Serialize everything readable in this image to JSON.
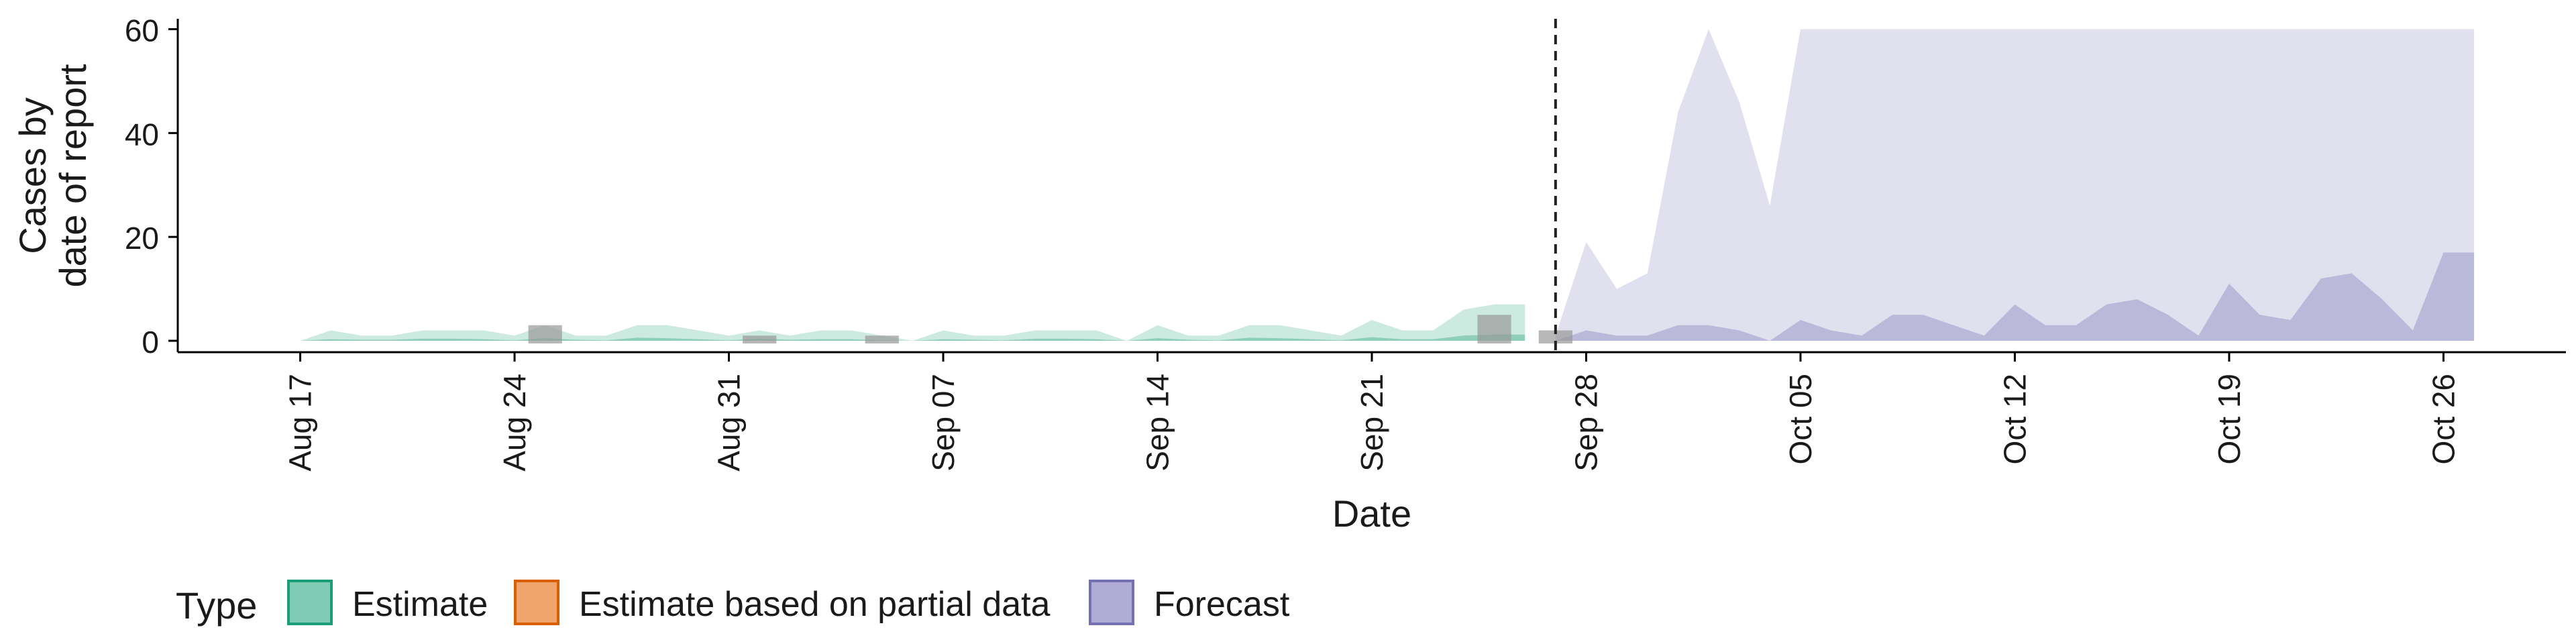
{
  "chart_data": {
    "type": "area",
    "xlabel": "Date",
    "ylabel_lines": [
      "Cases by",
      "date of report"
    ],
    "ylim": [
      0,
      62
    ],
    "y_ticks": [
      0,
      20,
      40,
      60
    ],
    "x_range": [
      "2020-08-13",
      "2020-10-30"
    ],
    "x_ticks": [
      {
        "date": "2020-08-17",
        "label": "Aug 17"
      },
      {
        "date": "2020-08-24",
        "label": "Aug 24"
      },
      {
        "date": "2020-08-31",
        "label": "Aug 31"
      },
      {
        "date": "2020-09-07",
        "label": "Sep 07"
      },
      {
        "date": "2020-09-14",
        "label": "Sep 14"
      },
      {
        "date": "2020-09-21",
        "label": "Sep 21"
      },
      {
        "date": "2020-09-28",
        "label": "Sep 28"
      },
      {
        "date": "2020-10-05",
        "label": "Oct 05"
      },
      {
        "date": "2020-10-12",
        "label": "Oct 12"
      },
      {
        "date": "2020-10-19",
        "label": "Oct 19"
      },
      {
        "date": "2020-10-26",
        "label": "Oct 26"
      }
    ],
    "cutoff_date": "2020-09-27",
    "grid": false,
    "legend_placement": "bottom-left",
    "legend": {
      "title": "Type",
      "entries": [
        {
          "label": "Estimate",
          "fill": "#7fcbb4",
          "stroke": "#1b9e77"
        },
        {
          "label": "Estimate based on partial data",
          "fill": "#eea46a",
          "stroke": "#d95f02"
        },
        {
          "label": "Forecast",
          "fill": "#b1acd6",
          "stroke": "#7570b3"
        }
      ]
    },
    "colors": {
      "estimate_fill": "#1b9e77",
      "forecast_fill": "#7570b3",
      "observed_bar": "#999999"
    },
    "bands": [
      {
        "series": "Estimate",
        "x_start": "2020-08-17",
        "upper": [
          0,
          2,
          1,
          1,
          2,
          2,
          2,
          1,
          3,
          1,
          1,
          3,
          3,
          2,
          1,
          2,
          1,
          2,
          2,
          1,
          0,
          2,
          1,
          1,
          2,
          2,
          2,
          0,
          3,
          1,
          1,
          3,
          3,
          2,
          1,
          4,
          2,
          2,
          6,
          7,
          7
        ],
        "lower": [
          0,
          0.3,
          0.2,
          0.2,
          0.4,
          0.4,
          0.3,
          0.1,
          0.5,
          0.2,
          0.1,
          0.6,
          0.5,
          0.3,
          0.1,
          0.4,
          0.2,
          0.3,
          0.3,
          0.1,
          0,
          0.3,
          0.2,
          0.1,
          0.4,
          0.4,
          0.3,
          0,
          0.5,
          0.2,
          0.1,
          0.6,
          0.5,
          0.3,
          0.1,
          0.7,
          0.3,
          0.3,
          1,
          1.2,
          1.2
        ]
      },
      {
        "series": "Forecast",
        "x_start": "2020-09-27",
        "upper": [
          1,
          19,
          10,
          13,
          44,
          60,
          46,
          26,
          60,
          60,
          60,
          60,
          60,
          60,
          60,
          60,
          60,
          60,
          60,
          60,
          60,
          60,
          60,
          60,
          60,
          60,
          60,
          60,
          60,
          60,
          60
        ],
        "lower": [
          0,
          2,
          1,
          1,
          3,
          3,
          2,
          0,
          4,
          2,
          1,
          5,
          5,
          3,
          1,
          7,
          3,
          3,
          7,
          8,
          5,
          1,
          11,
          5,
          4,
          12,
          13,
          8,
          2,
          17,
          17
        ]
      }
    ],
    "observed_cases": [
      {
        "date": "2020-08-25",
        "value": 3
      },
      {
        "date": "2020-09-01",
        "value": 1
      },
      {
        "date": "2020-09-05",
        "value": 1
      },
      {
        "date": "2020-09-25",
        "value": 5
      },
      {
        "date": "2020-09-27",
        "value": 2
      }
    ]
  }
}
